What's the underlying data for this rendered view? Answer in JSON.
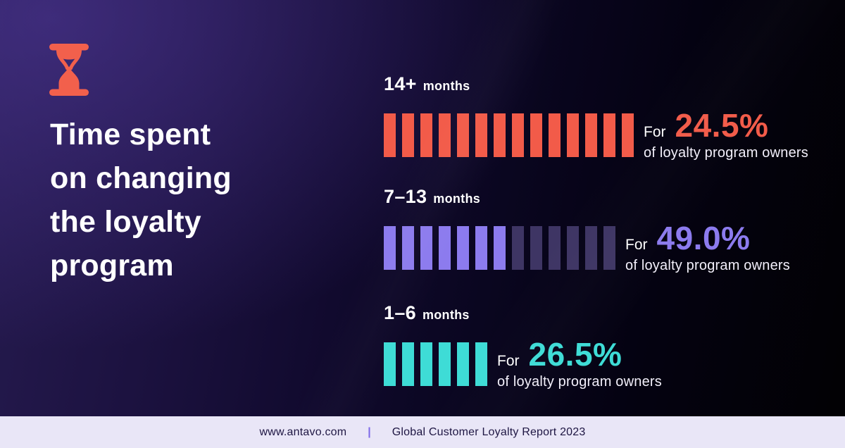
{
  "header": {
    "icon": "hourglass",
    "title_lines": [
      "Time spent",
      "on changing",
      "the loyalty",
      "program"
    ]
  },
  "chart_data": {
    "type": "bar",
    "subtype": "pictogram-tick-bars",
    "title": "Time spent on changing the loyalty program",
    "categories": [
      "14+ months",
      "7–13 months",
      "1–6 months"
    ],
    "values": [
      24.5,
      49.0,
      26.5
    ],
    "value_unit": "% of loyalty program owners",
    "tick_counts": [
      14,
      13,
      6
    ],
    "tick_bright_counts": [
      14,
      7,
      6
    ],
    "legend_position": "none",
    "grid": false
  },
  "rows": [
    {
      "range": "14+",
      "unit": "months",
      "ticks_total": 14,
      "ticks_bright": 14,
      "for_label": "For",
      "value_label": "24.5%",
      "value": 24.5,
      "audience": "of loyalty program owners",
      "accent": "#F25B49",
      "dim": "#F25B49"
    },
    {
      "range": "7–13",
      "unit": "months",
      "ticks_total": 13,
      "ticks_bright": 7,
      "for_label": "For",
      "value_label": "49.0%",
      "value": 49.0,
      "audience": "of loyalty program owners",
      "accent": "#8C7BEE",
      "dim": "#3E3564"
    },
    {
      "range": "1–6",
      "unit": "months",
      "ticks_total": 6,
      "ticks_bright": 6,
      "for_label": "For",
      "value_label": "26.5%",
      "value": 26.5,
      "audience": "of loyalty program owners",
      "accent": "#3EDCD6",
      "dim": "#3EDCD6"
    }
  ],
  "footer": {
    "website": "www.antavo.com",
    "divider": "|",
    "report": "Global Customer Loyalty Report 2023"
  },
  "colors": {
    "background_top_left": "#2B1E57",
    "background_bottom_right": "#020103",
    "title_text": "#FFFFFF",
    "icon_accent": "#F2604C",
    "footer_bg": "#E9E6F7",
    "footer_text": "#1D1542",
    "footer_divider": "#7C68E8"
  }
}
